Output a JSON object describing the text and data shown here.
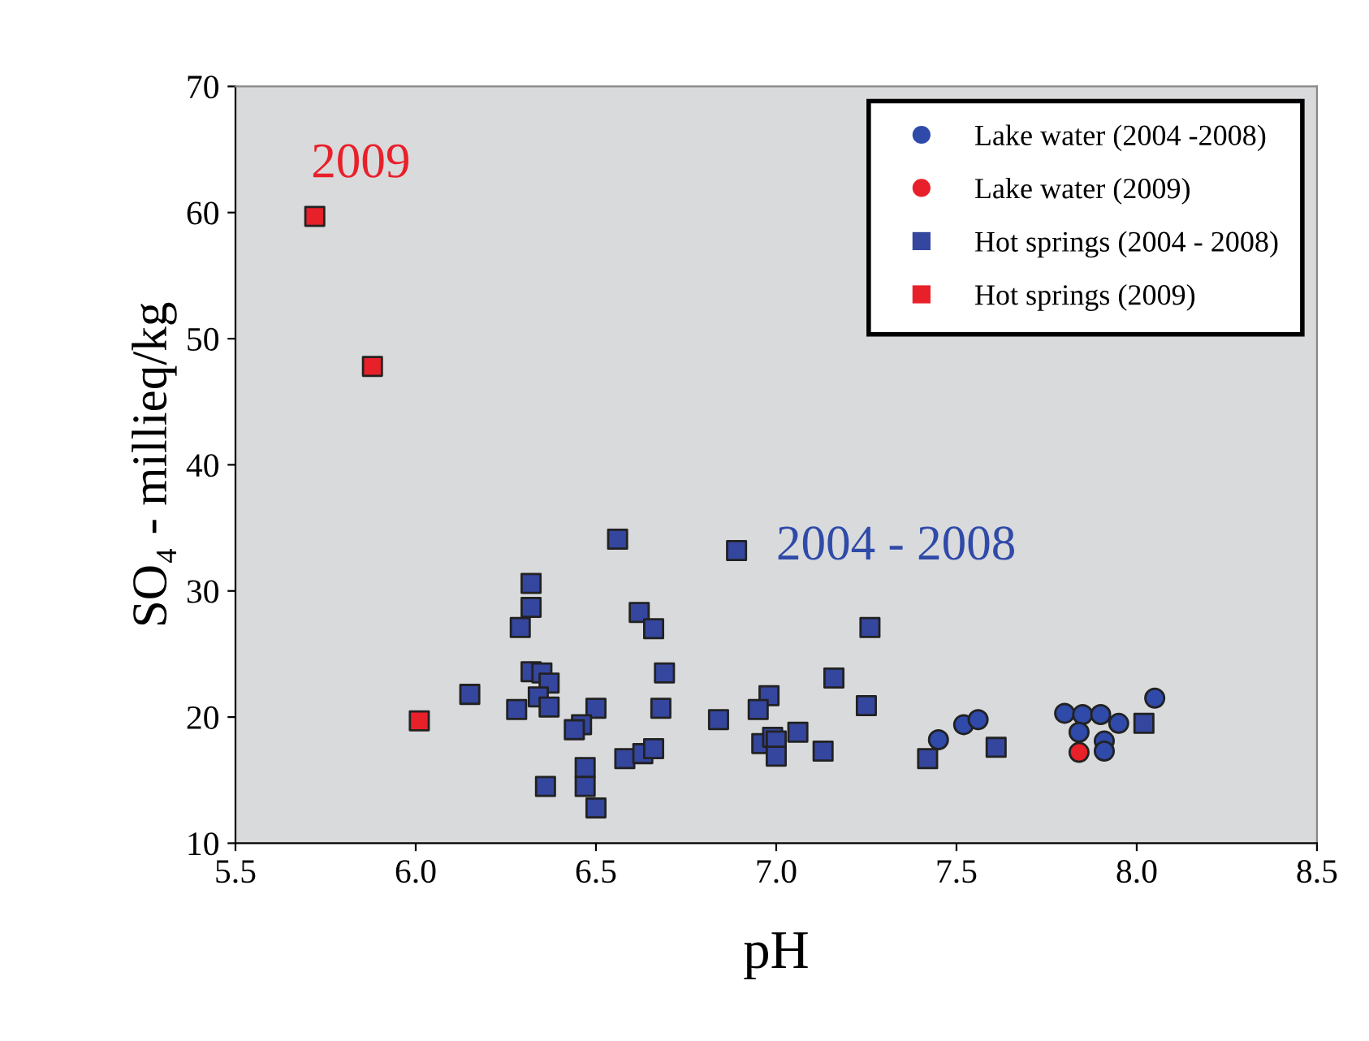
{
  "chart_data": {
    "type": "scatter",
    "xlabel": "pH",
    "ylabel": "SO₄ - millieq/kg",
    "xlim": [
      5.5,
      8.5
    ],
    "ylim": [
      10,
      70
    ],
    "xticks": [
      {
        "value": 5.5,
        "label": "5.5"
      },
      {
        "value": 6.0,
        "label": "6.0"
      },
      {
        "value": 6.5,
        "label": "6.5"
      },
      {
        "value": 7.0,
        "label": "7.0"
      },
      {
        "value": 7.5,
        "label": "7.5"
      },
      {
        "value": 8.0,
        "label": "8.0"
      },
      {
        "value": 8.5,
        "label": "8.5"
      }
    ],
    "yticks": [
      10,
      20,
      30,
      40,
      50,
      60,
      70
    ],
    "grid": false,
    "legend": "top right",
    "annotations": [
      "2009",
      "2004 - 2008"
    ],
    "series": [
      {
        "name": "Lake water (2004 -2008)",
        "color": "#2f4aa8",
        "marker": "circle",
        "x": [
          7.45,
          7.52,
          7.56,
          7.8,
          7.85,
          7.9,
          7.84,
          7.91,
          7.91,
          7.95,
          8.05
        ],
        "values": [
          18.2,
          19.4,
          19.8,
          20.3,
          20.2,
          20.2,
          18.8,
          18.1,
          17.3,
          19.5,
          21.5
        ]
      },
      {
        "name": "Lake water (2009)",
        "color": "#e8202a",
        "marker": "circle",
        "x": [
          7.84
        ],
        "values": [
          17.2
        ]
      },
      {
        "name": "Hot springs (2004 - 2008)",
        "color": "#35469e",
        "marker": "square",
        "x": [
          6.89,
          7.26,
          7.16,
          7.25,
          6.98,
          6.95,
          6.84,
          7.06,
          6.96,
          6.99,
          7.0,
          7.0,
          7.13,
          7.42,
          7.61,
          8.02,
          6.56,
          6.32,
          6.32,
          6.29,
          6.62,
          6.66,
          6.69,
          6.32,
          6.35,
          6.37,
          6.15,
          6.28,
          6.34,
          6.37,
          6.5,
          6.68,
          6.46,
          6.44,
          6.58,
          6.63,
          6.66,
          6.47,
          6.47,
          6.36,
          6.5
        ],
        "values": [
          33.2,
          27.1,
          23.1,
          20.9,
          21.7,
          20.6,
          19.8,
          18.8,
          17.9,
          18.4,
          18.1,
          16.9,
          17.3,
          16.7,
          17.6,
          19.5,
          34.1,
          30.6,
          28.7,
          27.1,
          28.3,
          27.0,
          23.5,
          23.6,
          23.5,
          22.7,
          21.8,
          20.6,
          21.6,
          20.8,
          20.7,
          20.7,
          19.4,
          19.0,
          16.7,
          17.1,
          17.5,
          16.0,
          14.5,
          14.5,
          12.8
        ]
      },
      {
        "name": "Hot springs (2009)",
        "color": "#e8202a",
        "marker": "square",
        "x": [
          5.72,
          5.88,
          6.01
        ],
        "values": [
          59.7,
          47.8,
          19.7
        ]
      }
    ]
  }
}
